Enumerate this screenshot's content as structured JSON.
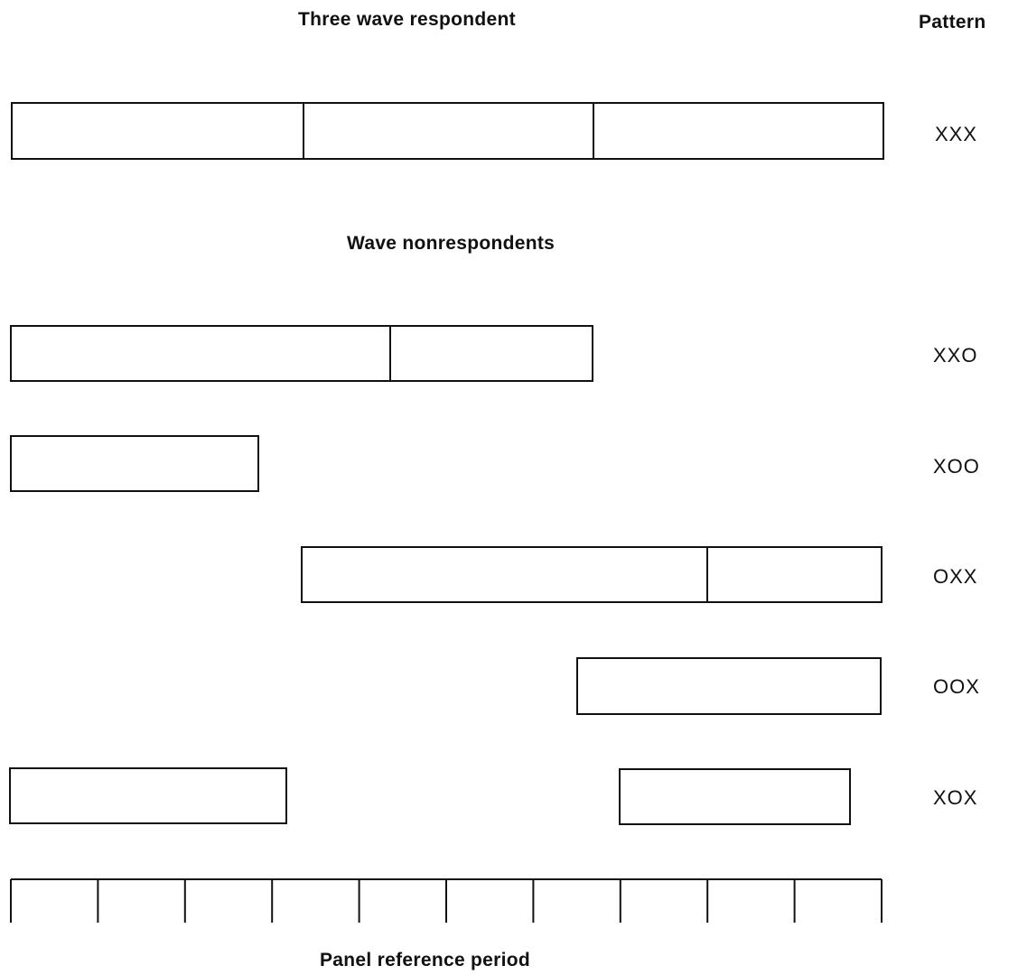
{
  "headings": {
    "respondent": "Three wave respondent",
    "pattern_column": "Pattern",
    "nonrespondents": "Wave nonrespondents",
    "timeline": "Panel reference period"
  },
  "rows": [
    {
      "pattern": "XXX"
    },
    {
      "pattern": "XXO"
    },
    {
      "pattern": "XOO"
    },
    {
      "pattern": "OXX"
    },
    {
      "pattern": "OOX"
    },
    {
      "pattern": "XOX"
    }
  ]
}
